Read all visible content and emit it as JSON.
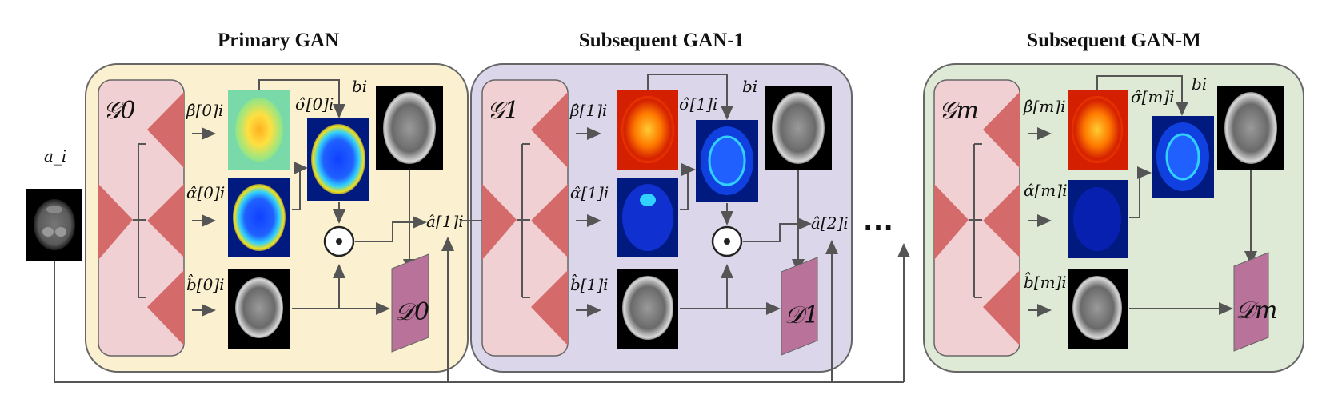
{
  "input": {
    "label": "a_i"
  },
  "continuation": "…",
  "stages": [
    {
      "title": "Primary GAN",
      "generator": "𝒢0",
      "beta": "β̂[0]i",
      "alpha": "α̂[0]i",
      "bhat": "b̂[0]i",
      "sigma": "σ̂[0]i",
      "target": "bi",
      "discriminator": "𝒟0",
      "output": "â[1]i",
      "fill": "#fbf0cf",
      "beta_map": "jet-green"
    },
    {
      "title": "Subsequent GAN-1",
      "generator": "𝒢1",
      "beta": "β̂[1]i",
      "alpha": "α̂[1]i",
      "bhat": "b̂[1]i",
      "sigma": "σ̂[1]i",
      "target": "bi",
      "discriminator": "𝒟1",
      "output": "â[2]i",
      "fill": "#dcd6ea",
      "beta_map": "hot"
    },
    {
      "title": "Subsequent GAN-M",
      "generator": "𝒢m",
      "beta": "β̂[m]i",
      "alpha": "α̂[m]i",
      "bhat": "b̂[m]i",
      "sigma": "σ̂[m]i",
      "target": "bi",
      "discriminator": "𝒟m",
      "output": "",
      "fill": "#dfead6",
      "beta_map": "hot"
    }
  ],
  "colors": {
    "generator_panel": "#f0d0d2",
    "triangle": "#d46a6a",
    "discriminator": "#b9739a",
    "arrow": "#555555"
  }
}
